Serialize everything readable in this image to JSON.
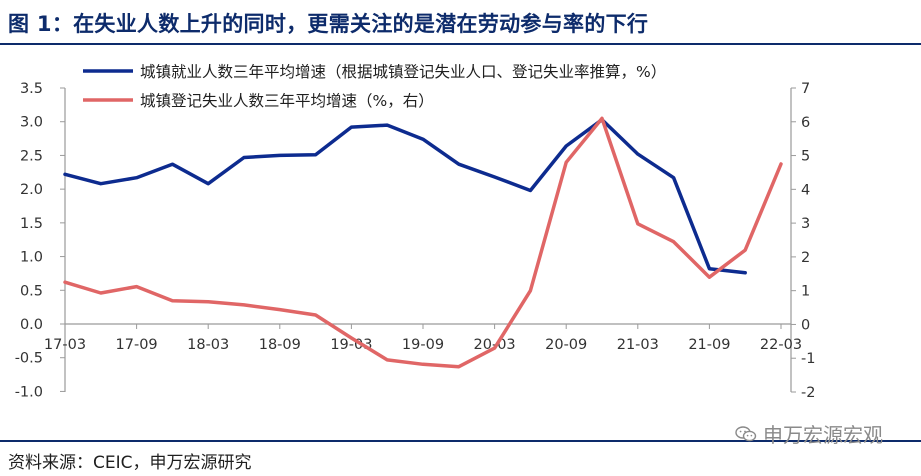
{
  "figure_title": "图 1：在失业人数上升的同时，更需关注的是潜在劳动参与率的下行",
  "source_note": "资料来源：CEIC，申万宏源研究",
  "watermark": "申万宏源宏观",
  "watermark_icon": "wechat-icon",
  "colors": {
    "title": "#0d2b6b",
    "series_blue": "#0d2b8f",
    "series_red": "#e06666"
  },
  "chart_data": {
    "type": "line",
    "x_ticks": [
      "17-03",
      "17-09",
      "18-03",
      "18-09",
      "19-03",
      "19-09",
      "20-03",
      "20-09",
      "21-03",
      "21-09",
      "22-03"
    ],
    "x": [
      "17-03",
      "17-06",
      "17-09",
      "17-12",
      "18-03",
      "18-06",
      "18-09",
      "18-12",
      "19-03",
      "19-06",
      "19-09",
      "19-12",
      "20-03",
      "20-06",
      "20-09",
      "20-12",
      "21-03",
      "21-06",
      "21-09",
      "21-12",
      "22-03"
    ],
    "y_left": {
      "min": -1.0,
      "max": 3.5,
      "ticks": [
        "3.5",
        "3.0",
        "2.5",
        "2.0",
        "1.5",
        "1.0",
        "0.5",
        "0.0",
        "-0.5",
        "-1.0"
      ]
    },
    "y_right": {
      "min": -2,
      "max": 7,
      "ticks": [
        "7",
        "6",
        "5",
        "4",
        "3",
        "2",
        "1",
        "0",
        "-1",
        "-2"
      ]
    },
    "series": [
      {
        "name": "城镇就业人数三年平均增速（根据城镇登记失业人口、登记失业率推算，%）",
        "axis": "left",
        "values": [
          2.22,
          2.08,
          2.17,
          2.37,
          2.08,
          2.47,
          2.5,
          2.51,
          2.92,
          2.95,
          2.74,
          2.37,
          2.18,
          1.98,
          2.64,
          3.03,
          2.52,
          2.17,
          0.82,
          0.76,
          null
        ]
      },
      {
        "name": "城镇登记失业人数三年平均增速（%，右）",
        "axis": "right",
        "values": [
          1.25,
          0.93,
          1.12,
          0.7,
          0.67,
          0.58,
          0.44,
          0.28,
          -0.4,
          -1.05,
          -1.18,
          -1.25,
          -0.7,
          1.0,
          4.8,
          6.1,
          2.98,
          2.45,
          1.4,
          2.2,
          4.75
        ]
      }
    ],
    "grid": false,
    "legend": "top"
  }
}
